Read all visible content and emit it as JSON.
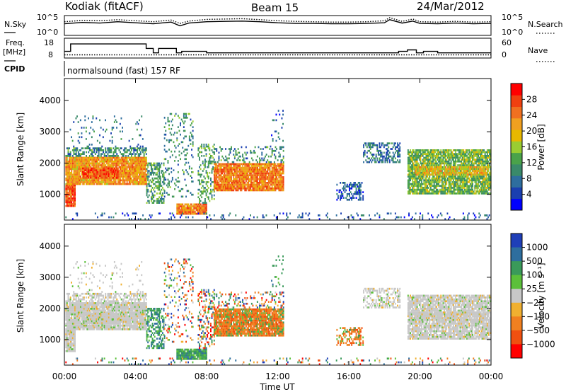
{
  "header": {
    "station": "Kodiak (fitACF)",
    "beam": "Beam 15",
    "date": "24/Mar/2012"
  },
  "left_labels": {
    "nsky": "N.Sky",
    "freq": "Freq.",
    "freq_unit": "[MHz]",
    "cpid": "CPID"
  },
  "right_labels": {
    "nsearch": "N.Search",
    "nave": "Nave"
  },
  "cpid_text": "normalsound (fast) 157 RF",
  "chart_data": [
    {
      "type": "line",
      "name": "noise",
      "left_ticks": [
        "10^5",
        "10^0"
      ],
      "right_ticks": [
        "10^5",
        "10^0"
      ],
      "series": [
        {
          "label": "N.Sky",
          "style": "solid",
          "x": [
            0,
            1,
            2,
            3,
            4,
            5,
            6,
            6.5,
            7,
            8,
            9,
            10,
            11,
            12,
            13,
            14,
            15,
            16,
            17,
            18,
            18.3,
            19,
            19.6,
            20,
            21,
            22,
            23,
            24
          ],
          "y": [
            3.0,
            3.4,
            3.2,
            3.6,
            3.3,
            3.0,
            3.5,
            2.4,
            3.2,
            3.6,
            3.7,
            3.8,
            3.6,
            3.3,
            3.1,
            3.1,
            3.0,
            3.0,
            3.1,
            3.3,
            4.2,
            3.2,
            3.8,
            3.1,
            3.0,
            3.2,
            3.0,
            3.1
          ]
        },
        {
          "label": "N.Search",
          "style": "dotted",
          "x": [
            0,
            1,
            2,
            3,
            4,
            5,
            6,
            6.5,
            7,
            8,
            9,
            10,
            11,
            12,
            13,
            14,
            15,
            16,
            17,
            18,
            18.3,
            19,
            19.6,
            20,
            21,
            22,
            23,
            24
          ],
          "y": [
            3.6,
            4.0,
            3.9,
            4.2,
            3.9,
            3.6,
            4.1,
            3.1,
            3.8,
            4.3,
            4.4,
            4.5,
            4.2,
            3.9,
            3.7,
            3.6,
            3.5,
            3.5,
            3.6,
            3.9,
            4.8,
            3.7,
            4.4,
            3.6,
            3.5,
            3.7,
            3.5,
            3.6
          ]
        }
      ]
    },
    {
      "type": "line",
      "name": "frequency-nave",
      "left_ticks": [
        "18",
        "8"
      ],
      "right_ticks": [
        "60",
        "0"
      ],
      "series": [
        {
          "label": "Freq",
          "style": "solid",
          "x": [
            0,
            0.35,
            0.35,
            4.6,
            4.6,
            5.0,
            5.0,
            5.3,
            5.3,
            6.3,
            6.3,
            6.6,
            6.6,
            8.0,
            8.0,
            12.0,
            12.0,
            14.5,
            14.5,
            18.8,
            18.8,
            19.3,
            19.3,
            19.8,
            19.8,
            20.2,
            20.2,
            21.0,
            21.0,
            24.0
          ],
          "y": [
            12,
            12,
            17,
            17,
            14,
            14,
            11,
            11,
            14,
            14,
            11,
            11,
            12,
            12,
            11,
            11,
            11,
            11,
            11,
            11,
            12,
            12,
            13,
            13,
            11,
            11,
            12,
            12,
            11,
            11
          ]
        },
        {
          "label": "Nave",
          "style": "dotted",
          "x": [
            0,
            24
          ],
          "y": [
            10,
            10
          ]
        }
      ]
    },
    {
      "type": "heatmap",
      "name": "power",
      "ylabel": "Slant Range [km]",
      "yticks": [
        "1000",
        "2000",
        "3000",
        "4000"
      ],
      "y_values": [
        1000,
        2000,
        3000,
        4000
      ],
      "ylim": [
        180,
        4700
      ],
      "xlim": [
        0,
        24
      ],
      "colorbar_label": "Power [dB]",
      "colorbar_ticks": [
        "4",
        "8",
        "12",
        "16",
        "20",
        "24",
        "28"
      ],
      "colorbar_values": [
        4,
        8,
        12,
        16,
        20,
        24,
        28
      ],
      "color_range": [
        0,
        32
      ],
      "colors": [
        "#0000ff",
        "#1a3fb0",
        "#2e6e9e",
        "#3a8a6a",
        "#4aa24a",
        "#9acd32",
        "#e8b800",
        "#f0a020",
        "#f07020",
        "#f04010",
        "#ff0000"
      ]
    },
    {
      "type": "heatmap",
      "name": "velocity",
      "ylabel": "Slant Range [km]",
      "yticks": [
        "1000",
        "2000",
        "3000",
        "4000"
      ],
      "y_values": [
        1000,
        2000,
        3000,
        4000
      ],
      "ylim": [
        180,
        4700
      ],
      "xlim": [
        0,
        24
      ],
      "xlabel": "Time UT",
      "xticks": [
        "00:00",
        "04:00",
        "08:00",
        "12:00",
        "16:00",
        "20:00",
        "00:00"
      ],
      "x_values": [
        0,
        4,
        8,
        12,
        16,
        20,
        24
      ],
      "colorbar_label": "Velocity [m s⁻¹]",
      "colorbar_ticks": [
        "1000",
        "500",
        "100",
        "25",
        "−25",
        "−100",
        "−500",
        "−1000"
      ],
      "colors": [
        "#1f3fb8",
        "#2e6e9e",
        "#3a9a5a",
        "#5cc03a",
        "#c8c8c8",
        "#f0b030",
        "#f08020",
        "#f05010",
        "#ff0000"
      ]
    }
  ]
}
